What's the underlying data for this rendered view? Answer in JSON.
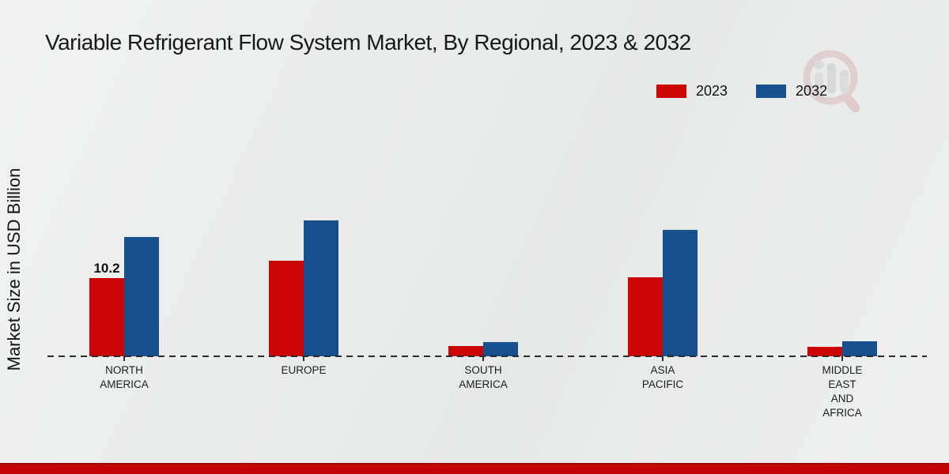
{
  "title": "Variable Refrigerant Flow System Market, By Regional, 2023 & 2032",
  "y_axis_label": "Market Size in USD Billion",
  "legend": {
    "items": [
      {
        "label": "2023",
        "color": "#cc0606"
      },
      {
        "label": "2032",
        "color": "#17508f"
      }
    ]
  },
  "icons": {
    "watermark": "market-research-logo-watermark"
  },
  "colors": {
    "series_2023": "#cc0606",
    "series_2032": "#17508f",
    "baseline": "#2b2b2b",
    "bottom_strip": "#c50505",
    "background": "#ebecec"
  },
  "chart_data": {
    "type": "bar",
    "title": "Variable Refrigerant Flow System Market, By Regional, 2023 & 2032",
    "xlabel": "",
    "ylabel": "Market Size in USD Billion",
    "unit": "USD Billion",
    "categories": [
      "NORTH AMERICA",
      "EUROPE",
      "SOUTH AMERICA",
      "ASIA PACIFIC",
      "MIDDLE EAST AND AFRICA"
    ],
    "category_label_lines": [
      [
        "NORTH",
        "AMERICA"
      ],
      [
        "EUROPE"
      ],
      [
        "SOUTH",
        "AMERICA"
      ],
      [
        "ASIA",
        "PACIFIC"
      ],
      [
        "MIDDLE",
        "EAST",
        "AND",
        "AFRICA"
      ]
    ],
    "series": [
      {
        "name": "2023",
        "color": "#cc0606",
        "values": [
          10.2,
          12.4,
          1.3,
          10.3,
          1.2
        ]
      },
      {
        "name": "2032",
        "color": "#17508f",
        "values": [
          15.5,
          17.7,
          1.9,
          16.4,
          2.0
        ]
      }
    ],
    "value_labels": [
      {
        "series": "2023",
        "category_index": 0,
        "text": "10.2"
      }
    ],
    "ylim": [
      0,
      20
    ],
    "grid": false,
    "legend_position": "top-right",
    "baseline_style": "dashed"
  }
}
